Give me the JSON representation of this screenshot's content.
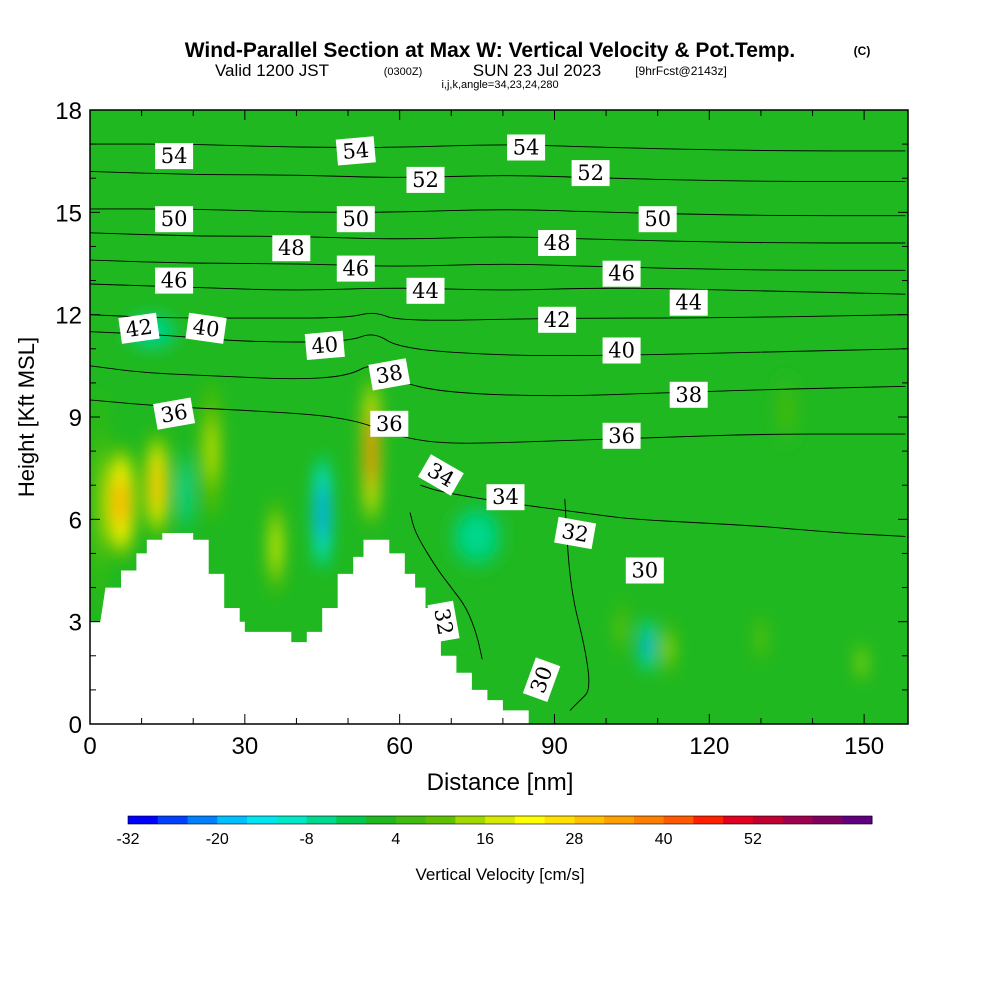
{
  "header": {
    "title": "Wind-Parallel Section at Max W: Vertical Velocity & Pot.Temp.",
    "title_mark": "(C)",
    "valid_prefix": "Valid 1200 JST",
    "valid_utc": "(0300Z)",
    "valid_date": "SUN 23 Jul 2023",
    "forecast": "[9hrFcst@2143z]",
    "indices": "i,j,k,angle=34,23,24,280"
  },
  "chart_data": {
    "type": "heatmap",
    "xlabel": "Distance [nm]",
    "ylabel": "Height [Kft MSL]",
    "xlim": [
      0,
      158.5
    ],
    "ylim": [
      0,
      18
    ],
    "xticks": [
      0,
      30,
      60,
      90,
      120,
      150
    ],
    "yticks": [
      0,
      3,
      6,
      9,
      12,
      15,
      18
    ],
    "colorbar": {
      "label": "Vertical Velocity [cm/s]",
      "min": -32,
      "max": 60,
      "step": 4,
      "tick_labels": [
        "-32",
        "-20",
        "-8",
        "4",
        "16",
        "28",
        "40",
        "52"
      ],
      "colors": [
        "#0000ff",
        "#0040ff",
        "#0080ff",
        "#00bfff",
        "#00e5f0",
        "#00e8c8",
        "#00d890",
        "#00c850",
        "#20b820",
        "#40bc10",
        "#60c000",
        "#a0d800",
        "#d8e800",
        "#ffff00",
        "#ffe000",
        "#ffc000",
        "#ffa000",
        "#ff8000",
        "#ff5800",
        "#ff2000",
        "#e00020",
        "#c00030",
        "#a00050",
        "#800060",
        "#600080"
      ]
    },
    "background_velocity": 2,
    "velocity_cells": [
      {
        "x": 2,
        "y": 6.5,
        "w": 1.6,
        "h": 6,
        "v": 16
      },
      {
        "x": 6,
        "y": 6.5,
        "w": 5.5,
        "h": 3.2,
        "v": 32
      },
      {
        "x": 13,
        "y": 7.0,
        "w": 4.5,
        "h": 3.0,
        "v": 30
      },
      {
        "x": 18.5,
        "y": 6.8,
        "w": 1.6,
        "h": 2.4,
        "v": -16
      },
      {
        "x": 23.5,
        "y": 8.0,
        "w": 3.5,
        "h": 3.8,
        "v": 18
      },
      {
        "x": 12,
        "y": 11.5,
        "w": 11,
        "h": 1.2,
        "v": -8
      },
      {
        "x": 36,
        "y": 5.2,
        "w": 2.5,
        "h": 2.8,
        "v": 22
      },
      {
        "x": 45,
        "y": 6.2,
        "w": 3.2,
        "h": 3.3,
        "v": -24
      },
      {
        "x": 54.5,
        "y": 8.0,
        "w": 3.0,
        "h": 4.2,
        "v": 44
      },
      {
        "x": 75,
        "y": 5.5,
        "w": 11,
        "h": 2.0,
        "v": -8
      },
      {
        "x": 108,
        "y": 2.3,
        "w": 2.5,
        "h": 1.5,
        "v": -24
      },
      {
        "x": 112,
        "y": 2.2,
        "w": 2.0,
        "h": 1.6,
        "v": 16
      },
      {
        "x": 103,
        "y": 2.8,
        "w": 1.5,
        "h": 1.6,
        "v": 12
      },
      {
        "x": 130,
        "y": 2.5,
        "w": 1.4,
        "h": 1.4,
        "v": 12
      },
      {
        "x": 149.5,
        "y": 1.8,
        "w": 1.2,
        "h": 1.2,
        "v": 22
      },
      {
        "x": 135,
        "y": 9.2,
        "w": 4.5,
        "h": 2.0,
        "v": 6
      }
    ],
    "terrain": [
      [
        0,
        3
      ],
      [
        2,
        3
      ],
      [
        3,
        4
      ],
      [
        6,
        4
      ],
      [
        6,
        4.5
      ],
      [
        9,
        4.5
      ],
      [
        9,
        5
      ],
      [
        11,
        5
      ],
      [
        11,
        5.4
      ],
      [
        14,
        5.4
      ],
      [
        14,
        5.6
      ],
      [
        20,
        5.6
      ],
      [
        20,
        5.4
      ],
      [
        23,
        5.4
      ],
      [
        23,
        4.4
      ],
      [
        26,
        4.4
      ],
      [
        26,
        3.4
      ],
      [
        29,
        3.4
      ],
      [
        29,
        3.0
      ],
      [
        30,
        3.0
      ],
      [
        30,
        2.7
      ],
      [
        39,
        2.7
      ],
      [
        39,
        2.4
      ],
      [
        42,
        2.4
      ],
      [
        42,
        2.7
      ],
      [
        45,
        2.7
      ],
      [
        45,
        3.4
      ],
      [
        48,
        3.4
      ],
      [
        48,
        4.4
      ],
      [
        51,
        4.4
      ],
      [
        51,
        4.9
      ],
      [
        53,
        4.9
      ],
      [
        53,
        5.4
      ],
      [
        58,
        5.4
      ],
      [
        58,
        5.0
      ],
      [
        61,
        5.0
      ],
      [
        61,
        4.4
      ],
      [
        63,
        4.4
      ],
      [
        63,
        4.0
      ],
      [
        65,
        4.0
      ],
      [
        65,
        3.4
      ],
      [
        67,
        3.4
      ],
      [
        67,
        2.7
      ],
      [
        68,
        2.7
      ],
      [
        68,
        2.0
      ],
      [
        71,
        2.0
      ],
      [
        71,
        1.5
      ],
      [
        74,
        1.5
      ],
      [
        74,
        1.0
      ],
      [
        77,
        1.0
      ],
      [
        77,
        0.7
      ],
      [
        80,
        0.7
      ],
      [
        80,
        0.4
      ],
      [
        85,
        0.4
      ],
      [
        85,
        0
      ],
      [
        0,
        0
      ]
    ],
    "theta_contours": [
      {
        "value": 30,
        "points": [
          [
            92,
            6.6
          ],
          [
            93,
            4.0
          ],
          [
            96,
            2.2
          ],
          [
            97,
            1.0
          ],
          [
            95,
            0.7
          ],
          [
            93,
            0.4
          ]
        ]
      },
      {
        "value": 32,
        "points": [
          [
            62,
            6.2
          ],
          [
            63,
            5.6
          ],
          [
            67,
            4.6
          ],
          [
            70,
            4.0
          ],
          [
            73,
            3.4
          ],
          [
            75,
            2.6
          ],
          [
            76,
            1.9
          ]
        ]
      },
      {
        "value": 34,
        "points": [
          [
            64,
            7.0
          ],
          [
            68,
            6.8
          ],
          [
            80,
            6.5
          ],
          [
            95,
            6.2
          ],
          [
            105,
            6.0
          ],
          [
            118,
            5.9
          ],
          [
            130,
            5.8
          ],
          [
            145,
            5.6
          ],
          [
            158,
            5.5
          ]
        ]
      },
      {
        "value": 36,
        "points": [
          [
            0,
            9.5
          ],
          [
            15,
            9.3
          ],
          [
            30,
            9.2
          ],
          [
            50,
            9.0
          ],
          [
            60,
            8.4
          ],
          [
            70,
            8.2
          ],
          [
            90,
            8.3
          ],
          [
            110,
            8.4
          ],
          [
            130,
            8.5
          ],
          [
            150,
            8.5
          ],
          [
            158,
            8.5
          ]
        ]
      },
      {
        "value": 38,
        "points": [
          [
            0,
            10.5
          ],
          [
            10,
            10.3
          ],
          [
            25,
            10.2
          ],
          [
            40,
            10.1
          ],
          [
            50,
            10.2
          ],
          [
            55,
            10.6
          ],
          [
            60,
            10.0
          ],
          [
            70,
            9.7
          ],
          [
            90,
            9.6
          ],
          [
            110,
            9.7
          ],
          [
            130,
            9.8
          ],
          [
            158,
            9.9
          ]
        ]
      },
      {
        "value": 40,
        "points": [
          [
            0,
            11.5
          ],
          [
            15,
            11.4
          ],
          [
            30,
            11.2
          ],
          [
            50,
            11.2
          ],
          [
            55,
            11.5
          ],
          [
            60,
            11.0
          ],
          [
            80,
            10.8
          ],
          [
            100,
            10.8
          ],
          [
            130,
            10.9
          ],
          [
            158,
            11.0
          ]
        ]
      },
      {
        "value": 42,
        "points": [
          [
            0,
            12.0
          ],
          [
            15,
            11.9
          ],
          [
            30,
            11.9
          ],
          [
            50,
            11.9
          ],
          [
            55,
            12.1
          ],
          [
            60,
            11.8
          ],
          [
            90,
            11.9
          ],
          [
            120,
            11.9
          ],
          [
            158,
            12.0
          ]
        ]
      },
      {
        "value": 44,
        "points": [
          [
            0,
            12.9
          ],
          [
            20,
            12.8
          ],
          [
            40,
            12.7
          ],
          [
            60,
            12.8
          ],
          [
            80,
            12.7
          ],
          [
            100,
            12.8
          ],
          [
            130,
            12.7
          ],
          [
            158,
            12.6
          ]
        ]
      },
      {
        "value": 46,
        "points": [
          [
            0,
            13.6
          ],
          [
            20,
            13.5
          ],
          [
            40,
            13.5
          ],
          [
            60,
            13.4
          ],
          [
            80,
            13.5
          ],
          [
            100,
            13.4
          ],
          [
            130,
            13.3
          ],
          [
            158,
            13.3
          ]
        ]
      },
      {
        "value": 48,
        "points": [
          [
            0,
            14.4
          ],
          [
            20,
            14.3
          ],
          [
            40,
            14.3
          ],
          [
            60,
            14.2
          ],
          [
            80,
            14.3
          ],
          [
            100,
            14.2
          ],
          [
            130,
            14.1
          ],
          [
            158,
            14.1
          ]
        ]
      },
      {
        "value": 50,
        "points": [
          [
            0,
            15.1
          ],
          [
            20,
            15.1
          ],
          [
            40,
            15.0
          ],
          [
            60,
            15.0
          ],
          [
            80,
            15.1
          ],
          [
            100,
            15.0
          ],
          [
            130,
            14.9
          ],
          [
            158,
            14.9
          ]
        ]
      },
      {
        "value": 52,
        "points": [
          [
            0,
            16.2
          ],
          [
            20,
            16.1
          ],
          [
            40,
            16.1
          ],
          [
            60,
            16.0
          ],
          [
            80,
            16.1
          ],
          [
            100,
            16.0
          ],
          [
            130,
            15.9
          ],
          [
            158,
            15.9
          ]
        ]
      },
      {
        "value": 54,
        "points": [
          [
            0,
            17.0
          ],
          [
            20,
            17.0
          ],
          [
            40,
            16.9
          ],
          [
            60,
            16.9
          ],
          [
            80,
            17.0
          ],
          [
            100,
            16.9
          ],
          [
            130,
            16.8
          ],
          [
            158,
            16.8
          ]
        ]
      }
    ],
    "contour_labels": [
      {
        "text": "54",
        "x": 16.3,
        "y": 16.65,
        "rot": 0
      },
      {
        "text": "54",
        "x": 51.5,
        "y": 16.8,
        "rot": -5
      },
      {
        "text": "54",
        "x": 84.5,
        "y": 16.9,
        "rot": 0
      },
      {
        "text": "52",
        "x": 65,
        "y": 15.95,
        "rot": 0
      },
      {
        "text": "52",
        "x": 97,
        "y": 16.15,
        "rot": 0
      },
      {
        "text": "50",
        "x": 16.3,
        "y": 14.8,
        "rot": 0
      },
      {
        "text": "50",
        "x": 51.5,
        "y": 14.8,
        "rot": 0
      },
      {
        "text": "50",
        "x": 110,
        "y": 14.8,
        "rot": 0
      },
      {
        "text": "48",
        "x": 39,
        "y": 13.95,
        "rot": 0
      },
      {
        "text": "48",
        "x": 90.5,
        "y": 14.1,
        "rot": 0
      },
      {
        "text": "46",
        "x": 16.3,
        "y": 13.0,
        "rot": 0
      },
      {
        "text": "46",
        "x": 51.5,
        "y": 13.35,
        "rot": 0
      },
      {
        "text": "46",
        "x": 103,
        "y": 13.2,
        "rot": 0
      },
      {
        "text": "44",
        "x": 65,
        "y": 12.7,
        "rot": 0
      },
      {
        "text": "44",
        "x": 116,
        "y": 12.35,
        "rot": 0
      },
      {
        "text": "42",
        "x": 9.5,
        "y": 11.6,
        "rot": -8
      },
      {
        "text": "42",
        "x": 90.5,
        "y": 11.85,
        "rot": 0
      },
      {
        "text": "40",
        "x": 22.5,
        "y": 11.6,
        "rot": 8
      },
      {
        "text": "40",
        "x": 45.5,
        "y": 11.1,
        "rot": -5
      },
      {
        "text": "40",
        "x": 103,
        "y": 10.95,
        "rot": 0
      },
      {
        "text": "38",
        "x": 58,
        "y": 10.25,
        "rot": -10
      },
      {
        "text": "38",
        "x": 116,
        "y": 9.65,
        "rot": 0
      },
      {
        "text": "36",
        "x": 16.3,
        "y": 9.1,
        "rot": -10
      },
      {
        "text": "36",
        "x": 58,
        "y": 8.8,
        "rot": 0
      },
      {
        "text": "36",
        "x": 103,
        "y": 8.45,
        "rot": 0
      },
      {
        "text": "34",
        "x": 68,
        "y": 7.3,
        "rot": 30
      },
      {
        "text": "34",
        "x": 80.5,
        "y": 6.65,
        "rot": 0
      },
      {
        "text": "32",
        "x": 94,
        "y": 5.6,
        "rot": 10
      },
      {
        "text": "32",
        "x": 68.5,
        "y": 3.0,
        "rot": 80
      },
      {
        "text": "30",
        "x": 107.5,
        "y": 4.5,
        "rot": 0
      },
      {
        "text": "30",
        "x": 87.5,
        "y": 1.3,
        "rot": -70
      }
    ]
  }
}
